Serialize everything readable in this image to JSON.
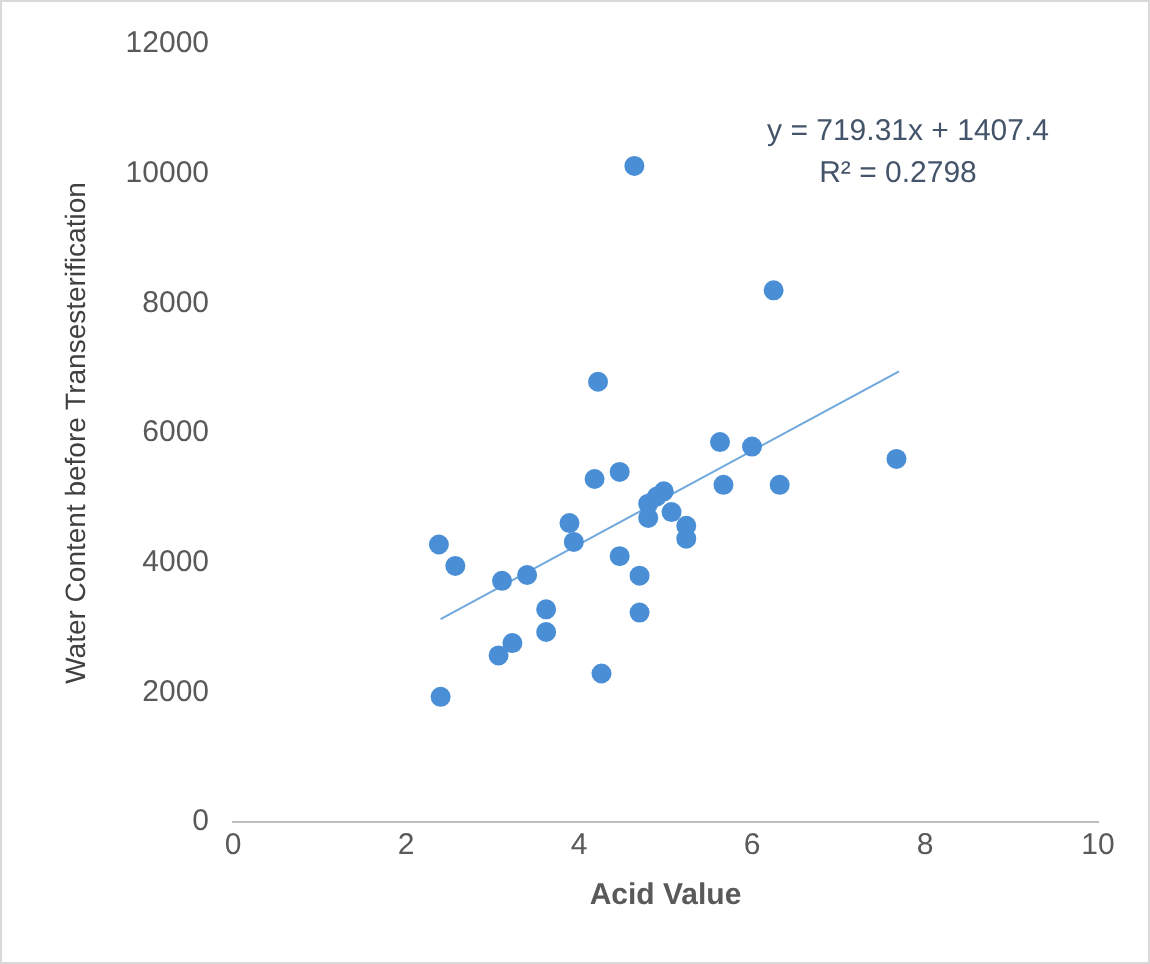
{
  "chart_data": {
    "type": "scatter",
    "xlabel": "Acid Value",
    "ylabel": "Water Content before Transesterification",
    "xlim": [
      0,
      10
    ],
    "xticks": [
      0,
      2,
      4,
      6,
      8,
      10
    ],
    "ylim": [
      0,
      12000
    ],
    "yticks": [
      0,
      2000,
      4000,
      6000,
      8000,
      10000,
      12000
    ],
    "grid": false,
    "legend": false,
    "series": [
      {
        "color": "#4a8fd6",
        "marker": "circle",
        "x": [
          2.38,
          2.57,
          2.4,
          3.11,
          3.4,
          3.89,
          3.94,
          3.62,
          3.62,
          3.23,
          3.07,
          4.26,
          4.47,
          4.7,
          4.7,
          4.18,
          4.47,
          4.8,
          4.9,
          4.98,
          4.8,
          5.07,
          5.24,
          5.24,
          5.67,
          6.32,
          6.25,
          6.0,
          7.67,
          4.64,
          4.22,
          5.63
        ],
        "values": [
          4280,
          3950,
          1930,
          3720,
          3810,
          4610,
          4320,
          3280,
          2930,
          2760,
          2570,
          2290,
          4100,
          3800,
          3230,
          5290,
          5400,
          4910,
          5020,
          5100,
          4690,
          4780,
          4570,
          4370,
          5200,
          5200,
          8200,
          5790,
          5600,
          10120,
          6790,
          5860
        ]
      },
      {
        "type": "line",
        "marker": "none",
        "color": "#6fa8dc",
        "x": [
          2.4,
          7.7
        ],
        "values": [
          3130,
          6950
        ]
      }
    ],
    "annotations": [
      "y = 719.31x + 1407.4",
      "R² = 0.2798"
    ]
  }
}
